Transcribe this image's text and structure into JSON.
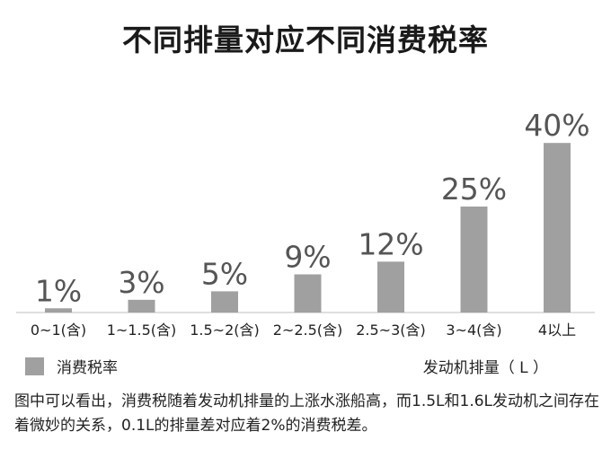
{
  "title": "不同排量对应不同消费税率",
  "legend_label": "消费税率",
  "x_axis_title": "发动机排量（ L ）",
  "note": "图中可以看出，消费税随着发动机排量的上涨水涨船高，而1.5L和1.6L发动机之间存在着微妙的关系，0.1L的排量差对应着2%的消费税差。",
  "colors": {
    "bar": "#a0a0a0",
    "axis": "#bfbfbf",
    "text": "#222222",
    "value": "#555555"
  },
  "chart_data": {
    "type": "bar",
    "title": "不同排量对应不同消费税率",
    "xlabel": "发动机排量（ L ）",
    "ylabel": "",
    "categories": [
      "0~1(含)",
      "1~1.5(含)",
      "1.5~2(含)",
      "2~2.5(含)",
      "2.5~3(含)",
      "3~4(含)",
      "4以上"
    ],
    "series": [
      {
        "name": "消费税率",
        "values": [
          1,
          3,
          5,
          9,
          12,
          25,
          40
        ]
      }
    ],
    "value_labels": [
      "1%",
      "3%",
      "5%",
      "9%",
      "12%",
      "25%",
      "40%"
    ],
    "grid": false,
    "legend_position": "bottom-left"
  }
}
